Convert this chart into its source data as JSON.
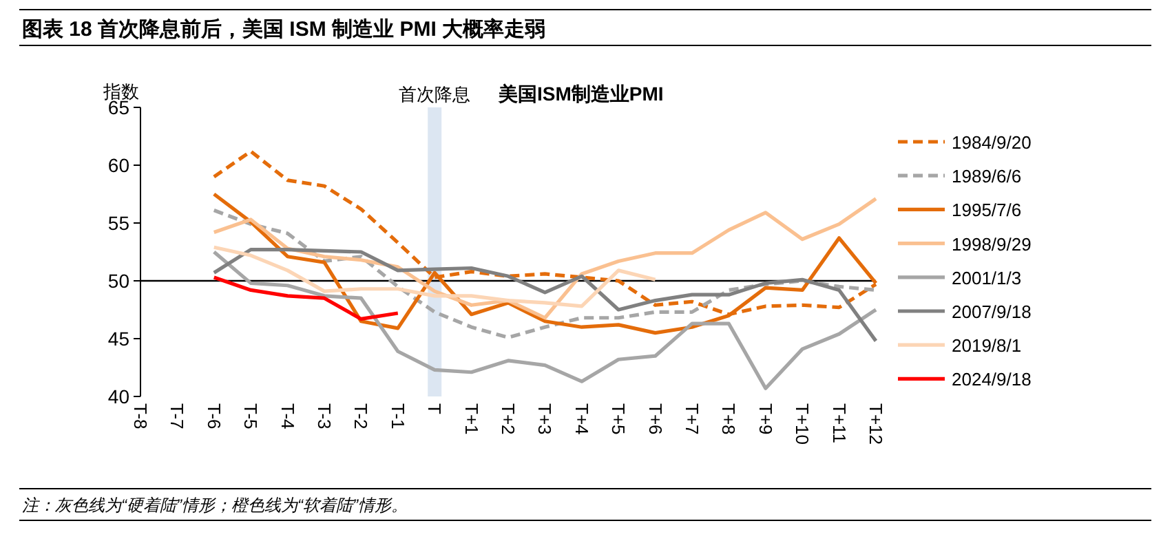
{
  "chart_data": {
    "type": "line",
    "title": "图表 18   首次降息前后，美国 ISM 制造业 PMI 大概率走弱",
    "subtitle": "美国ISM制造业PMI",
    "ylabel": "指数",
    "categories": [
      "T-8",
      "T-7",
      "T-6",
      "T-5",
      "T-4",
      "T-3",
      "T-2",
      "T-1",
      "T",
      "T+1",
      "T+2",
      "T+3",
      "T+4",
      "T+5",
      "T+6",
      "T+7",
      "T+8",
      "T+9",
      "T+10",
      "T+11",
      "T+12"
    ],
    "ylim": [
      40,
      65
    ],
    "yticks": [
      40,
      45,
      50,
      55,
      60,
      65
    ],
    "grid": false,
    "legend": "right",
    "marker": "none",
    "ref_lines": [
      {
        "axis": "y",
        "value": 50,
        "color": "#000000"
      }
    ],
    "bands": [
      {
        "axis": "x",
        "from": "T",
        "to": "T",
        "label": "首次降息",
        "color": "#dce6f2"
      }
    ],
    "annotations": [
      "注：灰色线为“硬着陆”情形；橙色线为“软着陆”情形。"
    ],
    "series": [
      {
        "name": "1984/9/20",
        "color": "#e46c0a",
        "line_style": "dashed",
        "values": [
          null,
          null,
          59.0,
          61.2,
          58.7,
          58.2,
          56.2,
          53.3,
          50.3,
          50.8,
          50.4,
          50.6,
          50.3,
          50.0,
          47.9,
          48.2,
          47.1,
          47.8,
          47.9,
          47.7,
          49.7
        ]
      },
      {
        "name": "1989/6/6",
        "color": "#a6a6a6",
        "line_style": "dashed",
        "values": [
          null,
          null,
          56.1,
          54.9,
          54.1,
          51.7,
          52.1,
          49.5,
          47.3,
          46.0,
          45.1,
          46.0,
          46.8,
          46.8,
          47.3,
          47.3,
          49.2,
          49.7,
          50.0,
          49.5,
          49.2
        ]
      },
      {
        "name": "1995/7/6",
        "color": "#e46c0a",
        "line_style": "solid",
        "values": [
          null,
          null,
          57.5,
          55.1,
          52.1,
          51.6,
          46.5,
          45.9,
          50.7,
          47.1,
          48.1,
          46.5,
          46.0,
          46.2,
          45.5,
          46.0,
          47.0,
          49.4,
          49.2,
          53.7,
          49.8
        ]
      },
      {
        "name": "1998/9/29",
        "color": "#fac090",
        "line_style": "solid",
        "values": [
          null,
          null,
          54.2,
          55.3,
          52.8,
          52.1,
          51.8,
          51.2,
          49.1,
          47.9,
          48.3,
          46.8,
          50.6,
          51.7,
          52.4,
          52.4,
          54.4,
          55.9,
          53.6,
          54.9,
          57.1
        ]
      },
      {
        "name": "2001/1/3",
        "color": "#a6a6a6",
        "line_style": "solid",
        "values": [
          null,
          null,
          52.5,
          49.8,
          49.6,
          48.7,
          48.5,
          43.9,
          42.3,
          42.1,
          43.1,
          42.7,
          41.3,
          43.2,
          43.5,
          46.3,
          46.3,
          40.7,
          44.1,
          45.4,
          47.5
        ]
      },
      {
        "name": "2007/9/18",
        "color": "#808080",
        "line_style": "solid",
        "values": [
          null,
          null,
          50.7,
          52.7,
          52.7,
          52.6,
          52.5,
          50.9,
          51.0,
          51.1,
          50.4,
          49.0,
          50.4,
          47.5,
          48.3,
          48.8,
          48.8,
          49.8,
          50.1,
          49.2,
          44.8
        ]
      },
      {
        "name": "2019/8/1",
        "color": "#fcd5b5",
        "line_style": "solid",
        "values": [
          null,
          null,
          52.9,
          52.2,
          50.9,
          49.1,
          49.3,
          49.3,
          48.7,
          48.7,
          48.3,
          48.1,
          47.8,
          50.9,
          50.1,
          null,
          null,
          null,
          null,
          null,
          null
        ]
      },
      {
        "name": "2024/9/18",
        "color": "#ff0000",
        "line_style": "solid",
        "values": [
          null,
          null,
          50.3,
          49.2,
          48.7,
          48.5,
          46.7,
          47.2,
          null,
          null,
          null,
          null,
          null,
          null,
          null,
          null,
          null,
          null,
          null,
          null,
          null
        ]
      }
    ]
  }
}
